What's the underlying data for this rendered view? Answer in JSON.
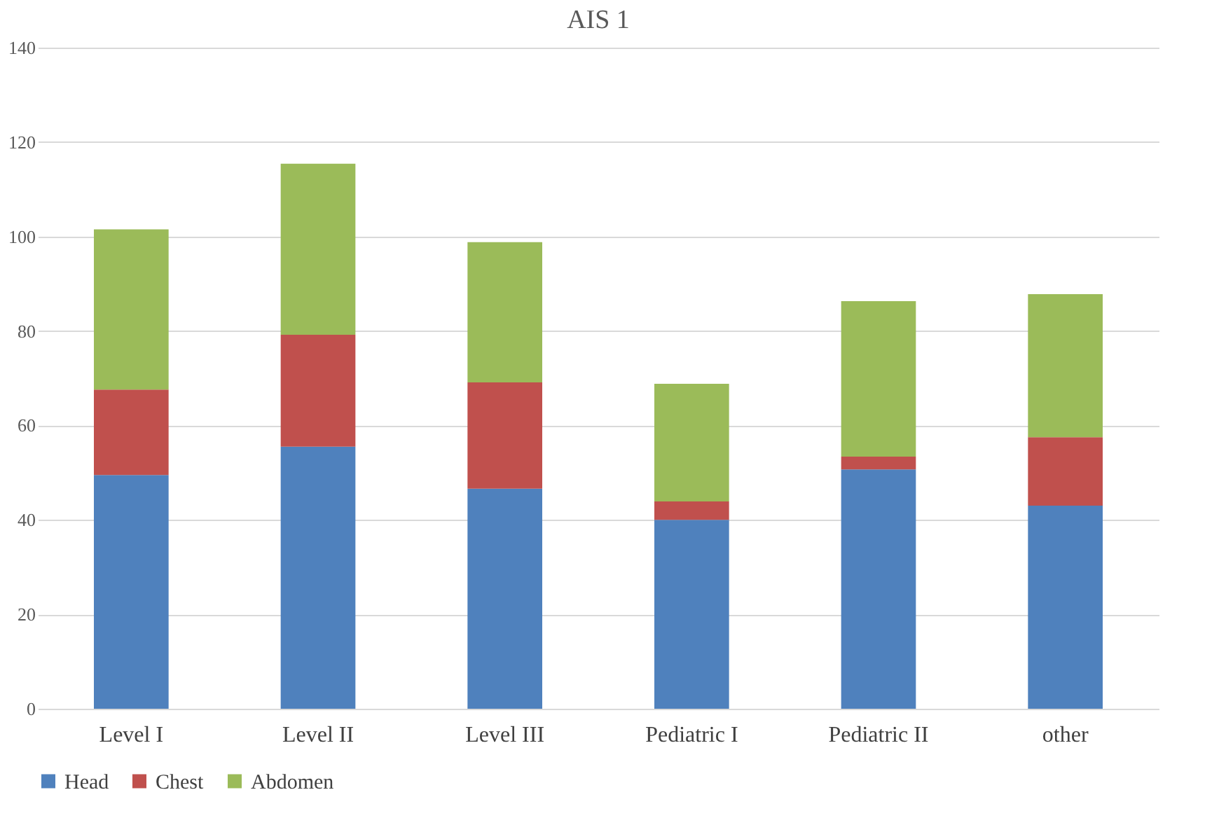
{
  "chart_data": {
    "type": "bar",
    "title": "AIS 1",
    "stacked": true,
    "categories": [
      "Level I",
      "Level II",
      "Level III",
      "Pediatric I",
      "Pediatric II",
      "other"
    ],
    "series": [
      {
        "name": "Head",
        "color": "#4f81bd",
        "values": [
          49.5,
          55.5,
          46.6,
          40.0,
          50.7,
          43.0
        ]
      },
      {
        "name": "Chest",
        "color": "#c0504d",
        "values": [
          18.1,
          23.7,
          22.5,
          3.9,
          2.7,
          14.5
        ]
      },
      {
        "name": "Abdomen",
        "color": "#9bbb59",
        "values": [
          33.9,
          36.2,
          29.7,
          24.9,
          32.9,
          30.3
        ]
      }
    ],
    "ylim": [
      0,
      140
    ],
    "yticks": [
      0,
      20,
      40,
      60,
      80,
      100,
      120,
      140
    ],
    "grid": "y",
    "legend": "bottom"
  }
}
